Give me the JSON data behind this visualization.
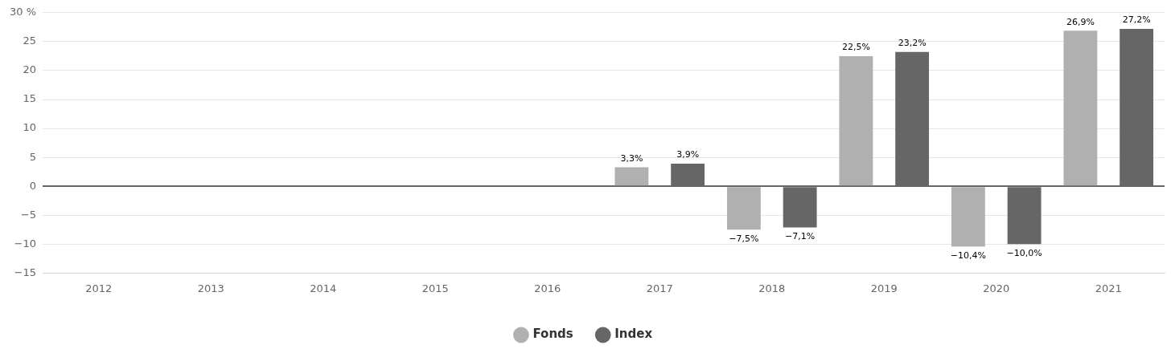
{
  "chart_data": {
    "type": "bar",
    "categories": [
      "2012",
      "2013",
      "2014",
      "2015",
      "2016",
      "2017",
      "2018",
      "2019",
      "2020",
      "2021"
    ],
    "series": [
      {
        "name": "Fonds",
        "color": "#b0b0b0",
        "values": [
          null,
          null,
          null,
          null,
          null,
          3.3,
          -7.5,
          22.5,
          -10.4,
          26.9
        ],
        "value_labels": [
          null,
          null,
          null,
          null,
          null,
          "3,3%",
          "−7,5%",
          "22,5%",
          "−10,4%",
          "26,9%"
        ]
      },
      {
        "name": "Index",
        "color": "#666666",
        "values": [
          null,
          null,
          null,
          null,
          null,
          3.9,
          -7.1,
          23.2,
          -10.0,
          27.2
        ],
        "value_labels": [
          null,
          null,
          null,
          null,
          null,
          "3,9%",
          "−7,1%",
          "23,2%",
          "−10,0%",
          "27,2%"
        ]
      }
    ],
    "ylim": [
      -15,
      30
    ],
    "yticks": [
      -15,
      -10,
      -5,
      0,
      5,
      10,
      15,
      20,
      25,
      {
        "value": 30,
        "label": "30 %"
      }
    ],
    "grid": "y",
    "legend": "bottom"
  }
}
